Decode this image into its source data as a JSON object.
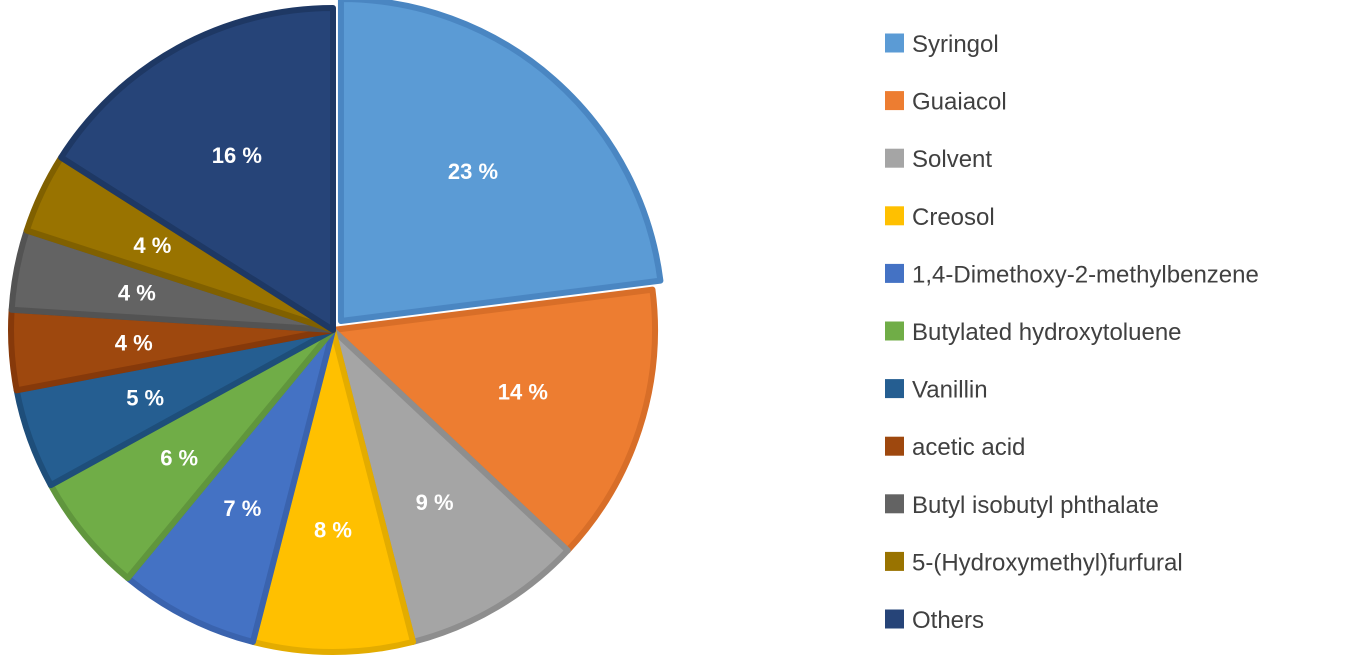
{
  "chart_data": {
    "type": "pie",
    "title": "",
    "legend_position": "right",
    "categories": [
      "Syringol",
      "Guaiacol",
      "Solvent",
      "Creosol",
      "1,4-Dimethoxy-2-methylbenzene",
      "Butylated hydroxytoluene",
      "Vanillin",
      "acetic acid",
      "Butyl isobutyl phthalate",
      "5-(Hydroxymethyl)furfural",
      "Others"
    ],
    "values": [
      23,
      14,
      9,
      8,
      7,
      6,
      5,
      4,
      4,
      4,
      16
    ],
    "labels": [
      "23 %",
      "14 %",
      "9 %",
      "8 %",
      "7 %",
      "6 %",
      "5 %",
      "4 %",
      "4 %",
      "4 %",
      "16 %"
    ],
    "colors": [
      "#5B9BD5",
      "#ED7D31",
      "#A5A5A5",
      "#FFC000",
      "#4472C4",
      "#70AD47",
      "#255E91",
      "#9E480E",
      "#636363",
      "#997300",
      "#264478"
    ],
    "edge_colors": [
      "#4A86C2",
      "#D86E28",
      "#8E8E8E",
      "#E3AC00",
      "#3A63AE",
      "#60963D",
      "#1E4E7A",
      "#86390A",
      "#535353",
      "#806000",
      "#1E3864"
    ]
  }
}
